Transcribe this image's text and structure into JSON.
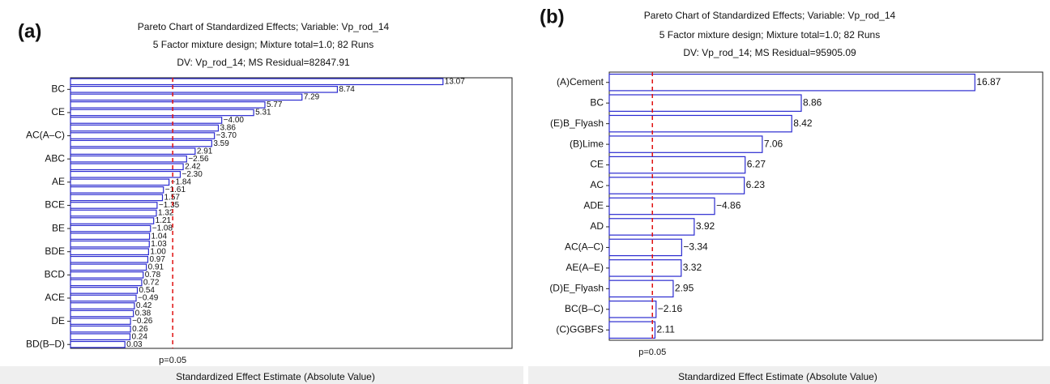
{
  "chart_data": [
    {
      "type": "bar",
      "orientation": "horizontal",
      "panel_label": "(a)",
      "title": "Pareto Chart of Standardized Effects; Variable: Vp_rod_14",
      "subtitle": [
        "5 Factor mixture design; Mixture total=1.0; 82 Runs",
        "DV: Vp_rod_14; MS Residual=82847.91"
      ],
      "x_label": "Standardized Effect Estimate (Absolute Value)",
      "categories": [
        null,
        "BC",
        null,
        null,
        "CE",
        null,
        null,
        "AC(A–C)",
        null,
        null,
        "ABC",
        null,
        null,
        "AE",
        null,
        null,
        "BCE",
        null,
        null,
        "BE",
        null,
        null,
        "BDE",
        null,
        null,
        "BCD",
        null,
        null,
        "ACE",
        null,
        null,
        "DE",
        null,
        null,
        "BD(B–D)"
      ],
      "values": [
        13.07,
        8.74,
        7.29,
        5.77,
        5.31,
        -4.0,
        3.86,
        -3.7,
        3.59,
        2.91,
        -2.56,
        2.42,
        -2.3,
        -1.84,
        -1.61,
        1.57,
        -1.35,
        1.32,
        1.21,
        -1.08,
        1.04,
        1.03,
        1.0,
        0.97,
        0.91,
        0.78,
        0.72,
        0.54,
        -0.49,
        0.42,
        0.38,
        -0.26,
        0.26,
        0.24,
        0.03
      ],
      "value_labels": [
        "13.07",
        "8.74",
        "7.29",
        "5.77",
        "5.31",
        "−4.00",
        "3.86",
        "−3.70",
        "3.59",
        "2.91",
        "−2.56",
        "2.42",
        "−2.30",
        "−1.84",
        "−1.61",
        "1.57",
        "−1.35",
        "1.32",
        "1.21",
        "−1.08",
        "1.04",
        "1.03",
        "1.00",
        "0.97",
        "0.91",
        "0.78",
        "0.72",
        "0.54",
        "−0.49",
        "0.42",
        "0.38",
        "−0.26",
        "0.26",
        "0.24",
        "0.03"
      ],
      "color": "#2b2bd0",
      "xlim": [
        -2.2,
        15.9
      ],
      "reference": {
        "value": 1.99,
        "label": "p=0.05",
        "color": "#e01010"
      }
    },
    {
      "type": "bar",
      "orientation": "horizontal",
      "panel_label": "(b)",
      "title": "Pareto Chart of Standardized Effects; Variable: Vp_rod_14",
      "subtitle": [
        "5 Factor mixture design; Mixture total=1.0; 82 Runs",
        "DV: Vp_rod_14; MS Residual=95905.09"
      ],
      "x_label": "Standardized Effect Estimate (Absolute Value)",
      "categories": [
        "(A)Cement",
        "BC",
        "(E)B_Flyash",
        "(B)Lime",
        "CE",
        "AC",
        "ADE",
        "AD",
        "AC(A–C)",
        "AE(A–E)",
        "(D)E_Flyash",
        "BC(B–C)",
        "(C)GGBFS"
      ],
      "values": [
        16.87,
        8.86,
        8.42,
        7.06,
        6.27,
        6.23,
        -4.86,
        3.92,
        -3.34,
        3.32,
        2.95,
        -2.16,
        2.11
      ],
      "value_labels": [
        "16.87",
        "8.86",
        "8.42",
        "7.06",
        "6.27",
        "6.23",
        "−4.86",
        "3.92",
        "−3.34",
        "3.32",
        "2.95",
        "−2.16",
        "2.11"
      ],
      "color": "#2b2bd0",
      "xlim": [
        0,
        20
      ],
      "reference": {
        "value": 1.99,
        "label": "p=0.05",
        "color": "#e01010"
      }
    }
  ]
}
